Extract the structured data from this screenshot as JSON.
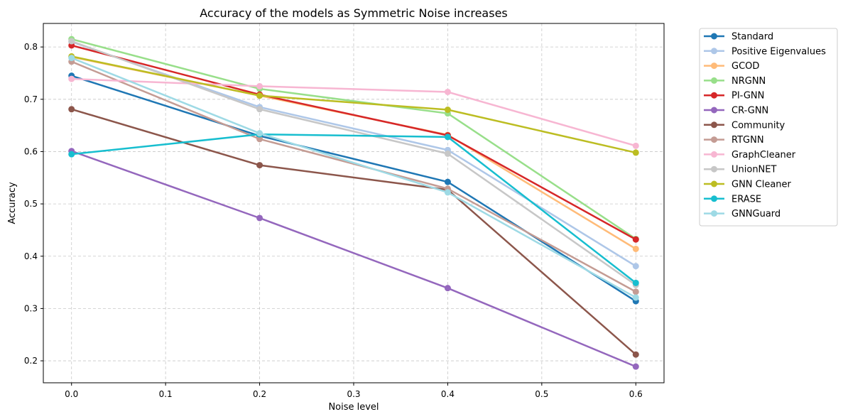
{
  "chart_data": {
    "type": "line",
    "title": "Accuracy of the models as Symmetric Noise increases",
    "xlabel": "Noise level",
    "ylabel": "Accuracy",
    "x": [
      0.0,
      0.2,
      0.4,
      0.6
    ],
    "xlim": [
      -0.03,
      0.63
    ],
    "ylim": [
      0.158,
      0.845
    ],
    "xticks": [
      0.0,
      0.1,
      0.2,
      0.3,
      0.4,
      0.5,
      0.6
    ],
    "xtick_labels": [
      "0.0",
      "0.1",
      "0.2",
      "0.3",
      "0.4",
      "0.5",
      "0.6"
    ],
    "yticks": [
      0.2,
      0.3,
      0.4,
      0.5,
      0.6,
      0.7,
      0.8
    ],
    "ytick_labels": [
      "0.2",
      "0.3",
      "0.4",
      "0.5",
      "0.6",
      "0.7",
      "0.8"
    ],
    "grid": true,
    "legend_position": "outside-right",
    "series": [
      {
        "name": "Standard",
        "color": "#1f77b4",
        "values": [
          0.745,
          0.63,
          0.542,
          0.314
        ]
      },
      {
        "name": "Positive Eigenvalues",
        "color": "#aec7e8",
        "values": [
          0.81,
          0.685,
          0.603,
          0.381
        ]
      },
      {
        "name": "GCOD",
        "color": "#ffbb78",
        "values": [
          0.781,
          0.707,
          0.632,
          0.414
        ]
      },
      {
        "name": "NRGNN",
        "color": "#98df8a",
        "values": [
          0.815,
          0.72,
          0.673,
          0.433
        ]
      },
      {
        "name": "PI-GNN",
        "color": "#d62728",
        "values": [
          0.803,
          0.709,
          0.631,
          0.432
        ]
      },
      {
        "name": "CR-GNN",
        "color": "#9467bd",
        "values": [
          0.601,
          0.473,
          0.339,
          0.189
        ]
      },
      {
        "name": "Community",
        "color": "#8c564b",
        "values": [
          0.681,
          0.574,
          0.527,
          0.212
        ]
      },
      {
        "name": "RTGNN",
        "color": "#c49c94",
        "values": [
          0.772,
          0.624,
          0.529,
          0.332
        ]
      },
      {
        "name": "GraphCleaner",
        "color": "#f7b6d2",
        "values": [
          0.739,
          0.725,
          0.714,
          0.611
        ]
      },
      {
        "name": "UnionNET",
        "color": "#c7c7c7",
        "values": [
          0.811,
          0.681,
          0.596,
          0.345
        ]
      },
      {
        "name": "GNN Cleaner",
        "color": "#bcbd22",
        "values": [
          0.782,
          0.707,
          0.68,
          0.598
        ]
      },
      {
        "name": "ERASE",
        "color": "#17becf",
        "values": [
          0.595,
          0.633,
          0.628,
          0.349
        ]
      },
      {
        "name": "GNNGuard",
        "color": "#9edae5",
        "values": [
          0.779,
          0.635,
          0.522,
          0.321
        ]
      }
    ]
  }
}
